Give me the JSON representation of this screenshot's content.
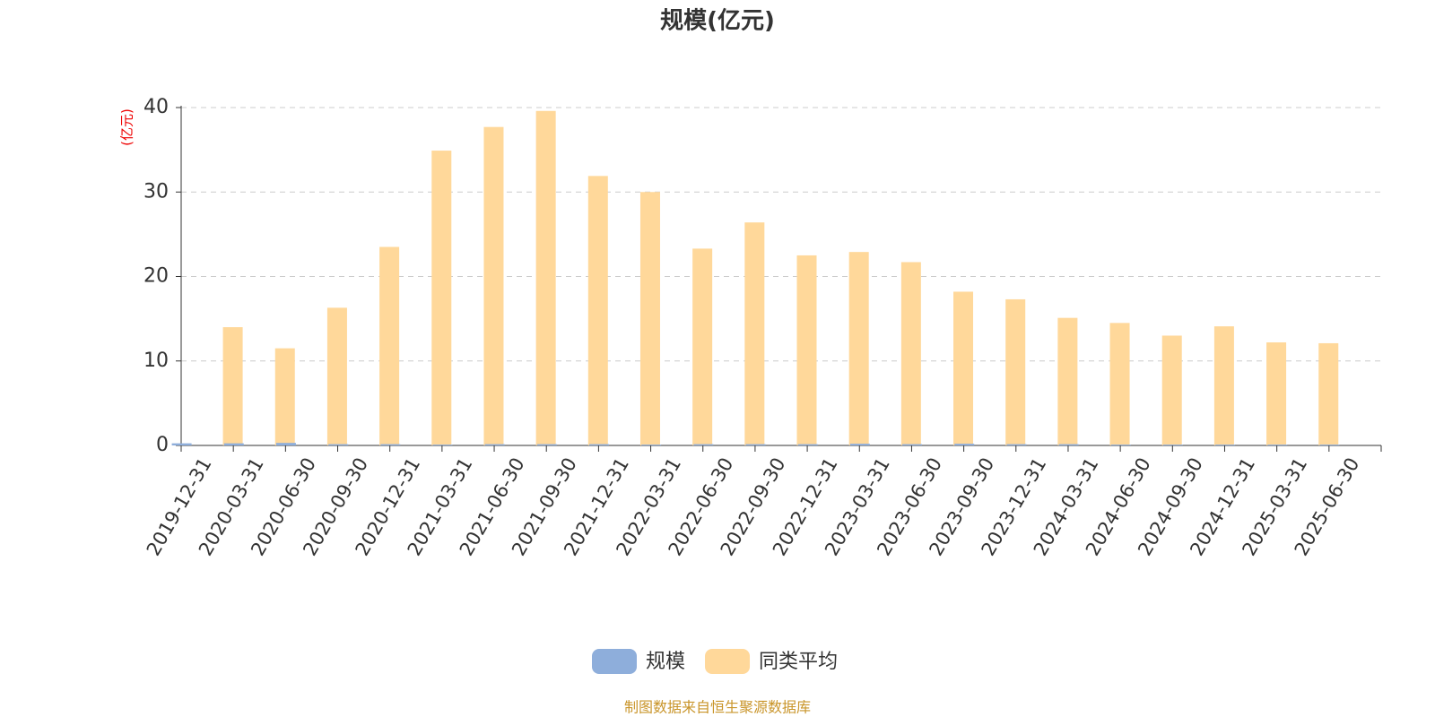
{
  "chart_data": {
    "type": "bar",
    "title": "规模(亿元)",
    "y_label": "(亿元)",
    "source": "制图数据来自恒生聚源数据库",
    "categories": [
      "2019-12-31",
      "2020-03-31",
      "2020-06-30",
      "2020-09-30",
      "2020-12-31",
      "2021-03-31",
      "2021-06-30",
      "2021-09-30",
      "2021-12-31",
      "2022-03-31",
      "2022-06-30",
      "2022-09-30",
      "2022-12-31",
      "2023-03-31",
      "2023-06-30",
      "2023-09-30",
      "2023-12-31",
      "2024-03-31",
      "2024-06-30",
      "2024-09-30",
      "2024-12-31",
      "2025-03-31",
      "2025-06-30"
    ],
    "series": [
      {
        "name": "规模",
        "color": "#8eaedb",
        "values": [
          0.25,
          0.25,
          0.3,
          0.15,
          0.15,
          0.1,
          0.15,
          0.15,
          0.15,
          0.1,
          0.15,
          0.15,
          0.15,
          0.2,
          0.15,
          0.2,
          0.15,
          0.15,
          0.1,
          0.1,
          0.1,
          0.1,
          0.1
        ]
      },
      {
        "name": "同类平均",
        "color": "#ffd89a",
        "values": [
          14.0,
          11.5,
          16.3,
          23.5,
          34.9,
          37.7,
          39.6,
          31.9,
          30.0,
          23.3,
          26.4,
          22.5,
          22.9,
          21.7,
          18.2,
          17.3,
          15.1,
          14.5,
          13.0,
          14.1,
          12.2,
          12.1,
          null
        ]
      }
    ],
    "ylim": [
      0,
      40
    ],
    "yticks": [
      0,
      10,
      20,
      30,
      40
    ],
    "grid": true
  }
}
